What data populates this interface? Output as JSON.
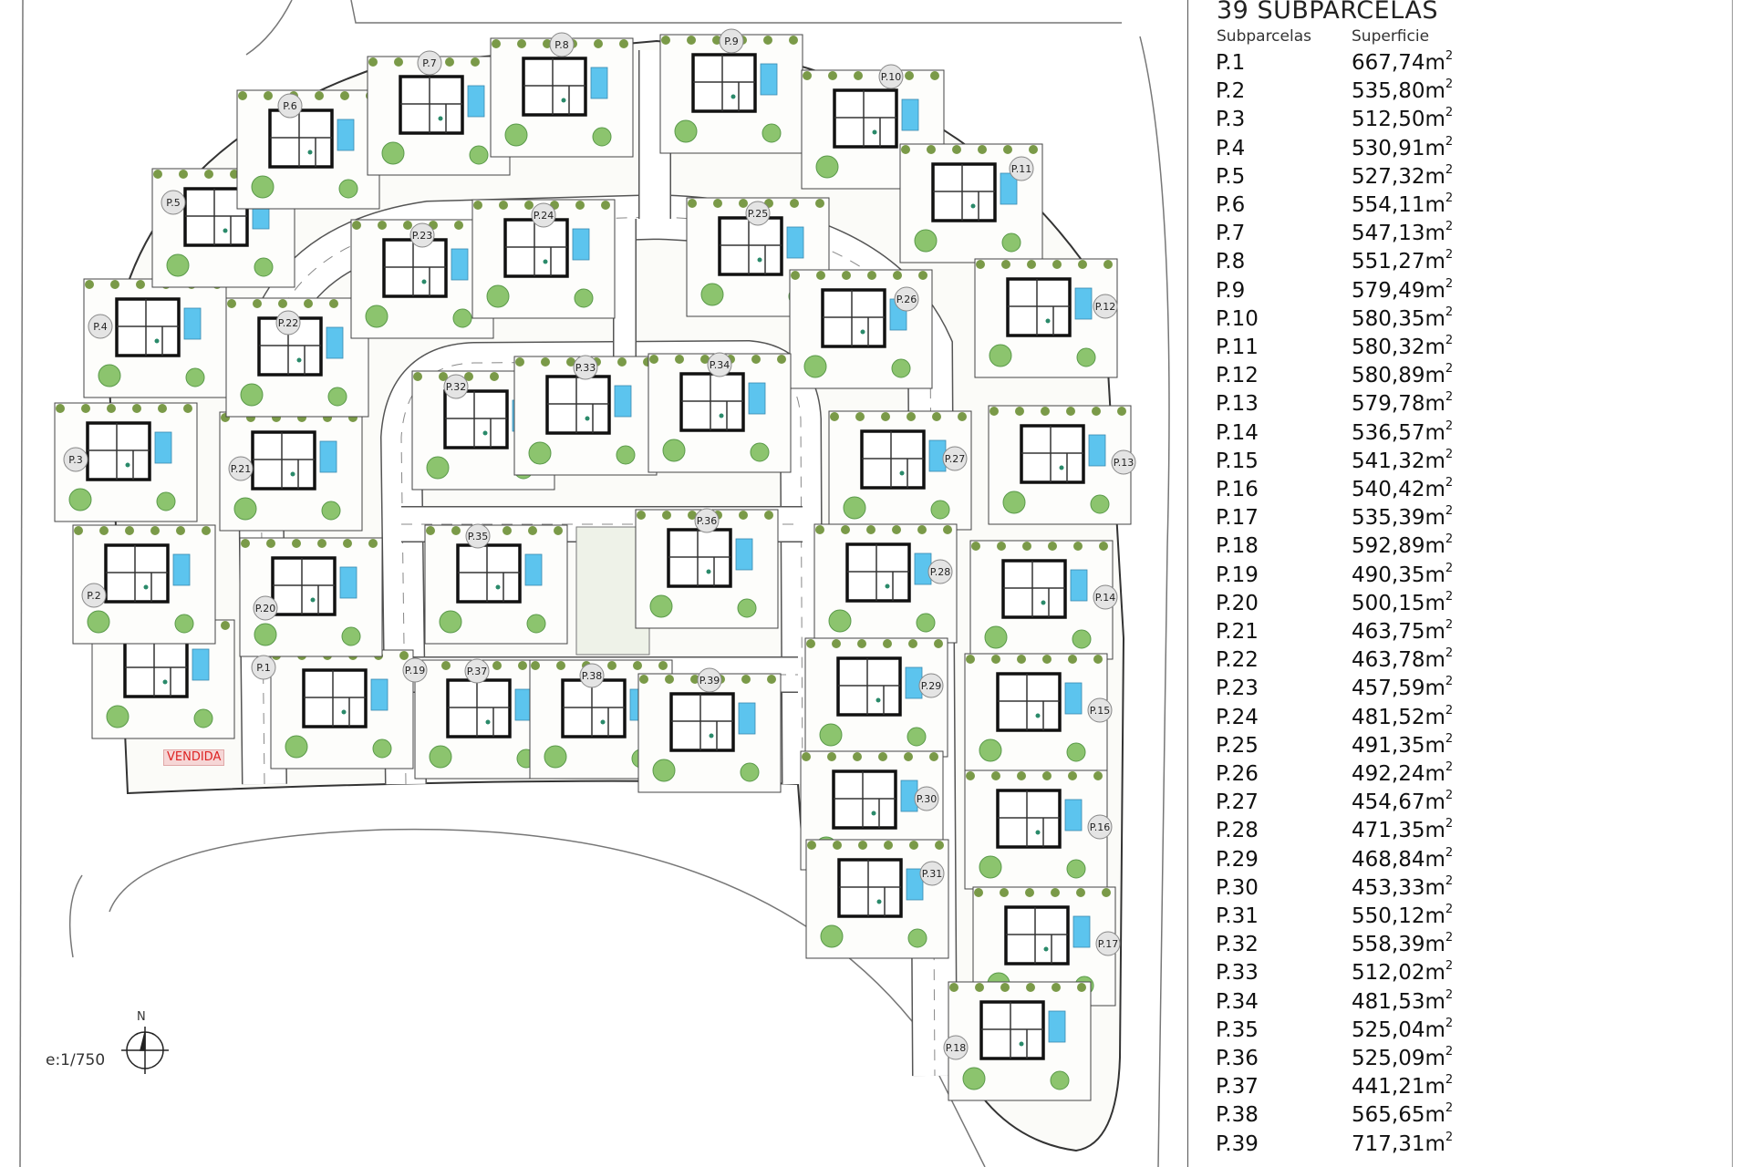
{
  "table": {
    "title": "39 SUBPARCELAS",
    "col_parcel": "Subparcelas",
    "col_area": "Superficie",
    "unit": "m",
    "unit_exp": "2",
    "rows": [
      {
        "id": "P.1",
        "area": "667,74"
      },
      {
        "id": "P.2",
        "area": "535,80"
      },
      {
        "id": "P.3",
        "area": "512,50"
      },
      {
        "id": "P.4",
        "area": "530,91"
      },
      {
        "id": "P.5",
        "area": "527,32"
      },
      {
        "id": "P.6",
        "area": "554,11"
      },
      {
        "id": "P.7",
        "area": "547,13"
      },
      {
        "id": "P.8",
        "area": "551,27"
      },
      {
        "id": "P.9",
        "area": "579,49"
      },
      {
        "id": "P.10",
        "area": "580,35"
      },
      {
        "id": "P.11",
        "area": "580,32"
      },
      {
        "id": "P.12",
        "area": "580,89"
      },
      {
        "id": "P.13",
        "area": "579,78"
      },
      {
        "id": "P.14",
        "area": "536,57"
      },
      {
        "id": "P.15",
        "area": "541,32"
      },
      {
        "id": "P.16",
        "area": "540,42"
      },
      {
        "id": "P.17",
        "area": "535,39"
      },
      {
        "id": "P.18",
        "area": "592,89"
      },
      {
        "id": "P.19",
        "area": "490,35"
      },
      {
        "id": "P.20",
        "area": "500,15"
      },
      {
        "id": "P.21",
        "area": "463,75"
      },
      {
        "id": "P.22",
        "area": "463,78"
      },
      {
        "id": "P.23",
        "area": "457,59"
      },
      {
        "id": "P.24",
        "area": "481,52"
      },
      {
        "id": "P.25",
        "area": "491,35"
      },
      {
        "id": "P.26",
        "area": "492,24"
      },
      {
        "id": "P.27",
        "area": "454,67"
      },
      {
        "id": "P.28",
        "area": "471,35"
      },
      {
        "id": "P.29",
        "area": "468,84"
      },
      {
        "id": "P.30",
        "area": "453,33"
      },
      {
        "id": "P.31",
        "area": "550,12"
      },
      {
        "id": "P.32",
        "area": "558,39"
      },
      {
        "id": "P.33",
        "area": "512,02"
      },
      {
        "id": "P.34",
        "area": "481,53"
      },
      {
        "id": "P.35",
        "area": "525,04"
      },
      {
        "id": "P.36",
        "area": "525,09"
      },
      {
        "id": "P.37",
        "area": "441,21"
      },
      {
        "id": "P.38",
        "area": "565,65"
      },
      {
        "id": "P.39",
        "area": "717,31"
      }
    ]
  },
  "plan": {
    "scale_label": "e:1/750",
    "north_label": "N",
    "sold_label": "VENDIDA",
    "sold_parcel": "P.1"
  },
  "colors": {
    "pool": "#5cc4ee",
    "tree": "#8cc46e",
    "hedge": "#7a9a48",
    "sold_text": "#dd2222",
    "lines": "#333333"
  }
}
